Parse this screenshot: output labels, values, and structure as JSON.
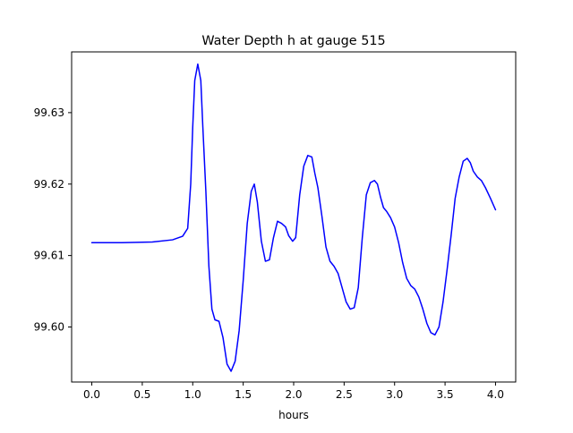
{
  "chart_data": {
    "type": "line",
    "title": "Water Depth h at gauge 515",
    "xlabel": "hours",
    "ylabel": "",
    "xlim": [
      -0.2,
      4.2
    ],
    "ylim": [
      99.5923,
      99.6385
    ],
    "grid": false,
    "legend": "none",
    "x_ticks": [
      0.0,
      0.5,
      1.0,
      1.5,
      2.0,
      2.5,
      3.0,
      3.5,
      4.0
    ],
    "x_tick_labels": [
      "0.0",
      "0.5",
      "1.0",
      "1.5",
      "2.0",
      "2.5",
      "3.0",
      "3.5",
      "4.0"
    ],
    "y_ticks": [
      99.6,
      99.61,
      99.62,
      99.63
    ],
    "y_tick_labels": [
      "99.60",
      "99.61",
      "99.62",
      "99.63"
    ],
    "series": [
      {
        "name": "",
        "color": "#0000ff",
        "x": [
          0.0,
          0.3,
          0.6,
          0.8,
          0.9,
          0.95,
          0.98,
          1.0,
          1.02,
          1.05,
          1.08,
          1.1,
          1.13,
          1.16,
          1.19,
          1.22,
          1.26,
          1.3,
          1.34,
          1.38,
          1.42,
          1.46,
          1.5,
          1.54,
          1.58,
          1.61,
          1.64,
          1.68,
          1.72,
          1.76,
          1.8,
          1.84,
          1.88,
          1.92,
          1.95,
          1.99,
          2.02,
          2.06,
          2.1,
          2.14,
          2.18,
          2.21,
          2.24,
          2.28,
          2.32,
          2.36,
          2.4,
          2.44,
          2.48,
          2.52,
          2.56,
          2.6,
          2.64,
          2.68,
          2.72,
          2.76,
          2.8,
          2.83,
          2.86,
          2.89,
          2.92,
          2.96,
          3.0,
          3.04,
          3.08,
          3.12,
          3.16,
          3.2,
          3.24,
          3.28,
          3.32,
          3.36,
          3.4,
          3.44,
          3.48,
          3.52,
          3.56,
          3.6,
          3.64,
          3.68,
          3.72,
          3.75,
          3.78,
          3.82,
          3.86,
          3.9,
          3.95,
          4.0
        ],
        "y": [
          99.6118,
          99.6118,
          99.6119,
          99.6122,
          99.6127,
          99.6138,
          99.62,
          99.628,
          99.6345,
          99.6368,
          99.6345,
          99.628,
          99.619,
          99.6085,
          99.6025,
          99.601,
          99.6008,
          99.5985,
          99.5948,
          99.5938,
          99.5952,
          99.5995,
          99.6065,
          99.6145,
          99.619,
          99.62,
          99.6175,
          99.612,
          99.6092,
          99.6094,
          99.6125,
          99.6148,
          99.6145,
          99.614,
          99.6128,
          99.612,
          99.6125,
          99.6185,
          99.6225,
          99.624,
          99.6238,
          99.6215,
          99.6195,
          99.6155,
          99.6112,
          99.6092,
          99.6085,
          99.6075,
          99.6055,
          99.6035,
          99.6025,
          99.6027,
          99.6055,
          99.6125,
          99.6185,
          99.6202,
          99.6205,
          99.62,
          99.6182,
          99.6167,
          99.6162,
          99.6153,
          99.614,
          99.6118,
          99.609,
          99.6068,
          99.6058,
          99.6053,
          99.6042,
          99.6025,
          99.6005,
          99.5992,
          99.5989,
          99.6,
          99.6035,
          99.608,
          99.6128,
          99.618,
          99.621,
          99.6232,
          99.6236,
          99.623,
          99.6218,
          99.621,
          99.6205,
          99.6195,
          99.618,
          99.6164
        ]
      }
    ]
  }
}
